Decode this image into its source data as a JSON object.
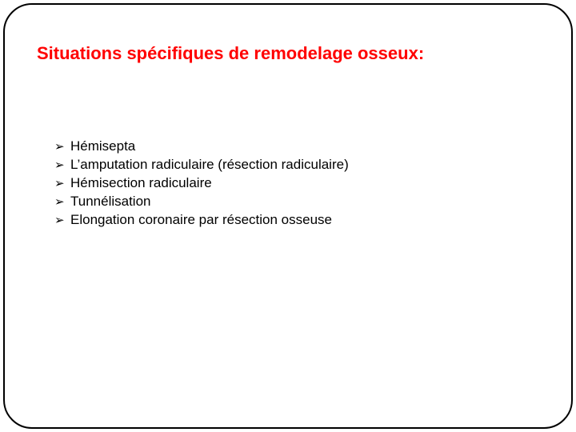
{
  "slide": {
    "title": "Situations spécifiques de remodelage osseux:",
    "title_color": "#ff0000",
    "title_fontsize": 22,
    "title_weight": 700,
    "text_color": "#000000",
    "item_fontsize": 17,
    "background_color": "#ffffff",
    "border_color": "#000000",
    "border_radius": 36,
    "bullet_marker": "➢",
    "items": [
      "Hémisepta",
      "L’amputation radiculaire (résection radiculaire)",
      "Hémisection radiculaire",
      "Tunnélisation",
      "Elongation coronaire par résection osseuse"
    ]
  }
}
